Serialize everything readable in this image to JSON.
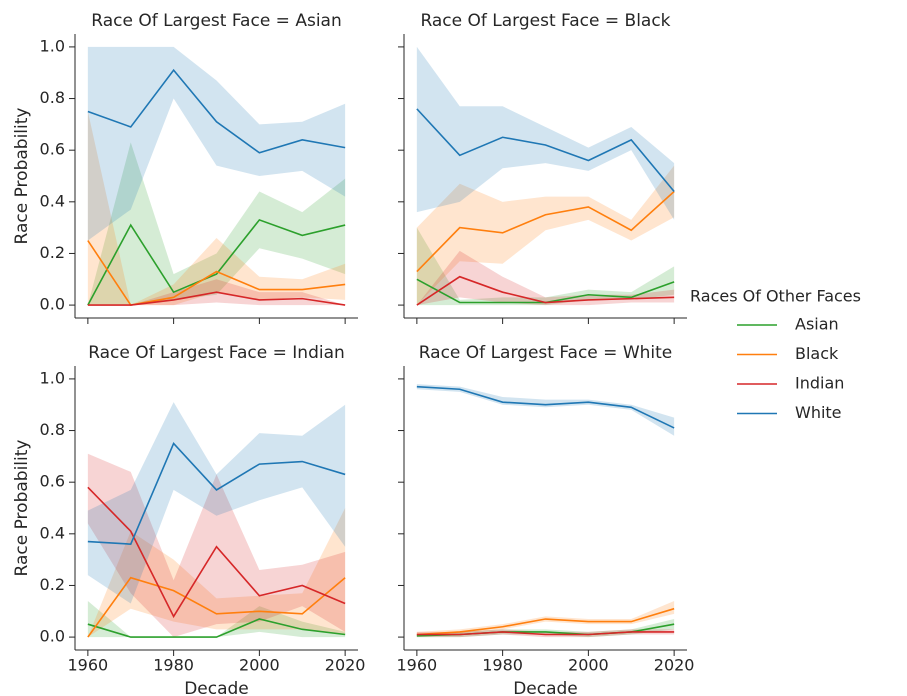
{
  "chart_data": [
    {
      "type": "line",
      "title": "Race Of Largest Face = Asian",
      "ylabel": "Race Probability",
      "legend_title": "Races Of Other Faces",
      "x": [
        1960,
        1970,
        1980,
        1990,
        2000,
        2010,
        2020
      ],
      "xlim": [
        1957,
        2023
      ],
      "xticks": [
        1960,
        1980,
        2000,
        2020
      ],
      "ylim": [
        -0.05,
        1.05
      ],
      "yticks": [
        {
          "value": 0,
          "label": "0.0"
        },
        0.2,
        0.4,
        0.6,
        0.8,
        {
          "value": 1,
          "label": "1.0"
        }
      ],
      "series": [
        {
          "name": "Asian",
          "color": "#2ca02c",
          "values": [
            0,
            0.31,
            0.05,
            0.12,
            0.33,
            0.27,
            0.31
          ],
          "lower": [
            0,
            0,
            0.02,
            0.04,
            0.22,
            0.18,
            0.12
          ],
          "upper": [
            0,
            0.63,
            0.12,
            0.2,
            0.44,
            0.36,
            0.49
          ]
        },
        {
          "name": "Black",
          "color": "#ff7f0e",
          "values": [
            0.25,
            0,
            0.03,
            0.13,
            0.06,
            0.06,
            0.08
          ],
          "lower": [
            0,
            0,
            0,
            0.05,
            0.02,
            0.03,
            0.02
          ],
          "upper": [
            0.75,
            0,
            0.08,
            0.26,
            0.11,
            0.1,
            0.16
          ]
        },
        {
          "name": "Indian",
          "color": "#d62728",
          "values": [
            0,
            0,
            0.02,
            0.05,
            0.02,
            0.025,
            0
          ],
          "lower": [
            0,
            0,
            0,
            0.01,
            0,
            0,
            0
          ],
          "upper": [
            0,
            0,
            0.05,
            0.1,
            0.05,
            0.05,
            0
          ]
        },
        {
          "name": "White",
          "color": "#1f77b4",
          "values": [
            0.75,
            0.69,
            0.91,
            0.71,
            0.59,
            0.64,
            0.61
          ],
          "lower": [
            0.25,
            0.37,
            0.8,
            0.54,
            0.5,
            0.52,
            0.42
          ],
          "upper": [
            1,
            1,
            1,
            0.87,
            0.7,
            0.71,
            0.78
          ]
        }
      ]
    },
    {
      "type": "line",
      "title": "Race Of Largest Face = Black",
      "x": [
        1960,
        1970,
        1980,
        1990,
        2000,
        2010,
        2020
      ],
      "xlim": [
        1957,
        2023
      ],
      "xticks": [
        1960,
        1980,
        2000,
        2020
      ],
      "ylim": [
        -0.05,
        1.05
      ],
      "yticks": [
        {
          "value": 0,
          "label": "0.0"
        },
        0.2,
        0.4,
        0.6,
        0.8,
        {
          "value": 1,
          "label": "1.0"
        }
      ],
      "series": [
        {
          "name": "Asian",
          "color": "#2ca02c",
          "values": [
            0.1,
            0.01,
            0.01,
            0.01,
            0.04,
            0.03,
            0.09
          ],
          "lower": [
            0,
            0,
            0,
            0,
            0.02,
            0.02,
            0.04
          ],
          "upper": [
            0.3,
            0.02,
            0.03,
            0.03,
            0.06,
            0.05,
            0.15
          ]
        },
        {
          "name": "Black",
          "color": "#ff7f0e",
          "values": [
            0.13,
            0.3,
            0.28,
            0.35,
            0.38,
            0.29,
            0.44
          ],
          "lower": [
            0,
            0.17,
            0.16,
            0.29,
            0.33,
            0.25,
            0.34
          ],
          "upper": [
            0.3,
            0.47,
            0.4,
            0.42,
            0.42,
            0.33,
            0.54
          ]
        },
        {
          "name": "Indian",
          "color": "#d62728",
          "values": [
            0,
            0.11,
            0.05,
            0.01,
            0.02,
            0.025,
            0.03
          ],
          "lower": [
            0,
            0.03,
            0.01,
            0,
            0,
            0.01,
            0.01
          ],
          "upper": [
            0,
            0.21,
            0.11,
            0.03,
            0.04,
            0.04,
            0.06
          ]
        },
        {
          "name": "White",
          "color": "#1f77b4",
          "values": [
            0.76,
            0.58,
            0.65,
            0.62,
            0.56,
            0.64,
            0.44
          ],
          "lower": [
            0.36,
            0.4,
            0.53,
            0.55,
            0.52,
            0.6,
            0.33
          ],
          "upper": [
            1,
            0.77,
            0.77,
            0.69,
            0.61,
            0.69,
            0.55
          ]
        }
      ]
    },
    {
      "type": "line",
      "title": "Race Of Largest Face = Indian",
      "ylabel": "Race Probability",
      "xlabel": "Decade",
      "x": [
        1960,
        1970,
        1980,
        1990,
        2000,
        2010,
        2020
      ],
      "xlim": [
        1957,
        2023
      ],
      "xticks": [
        1960,
        1980,
        2000,
        2020
      ],
      "ylim": [
        -0.05,
        1.05
      ],
      "yticks": [
        {
          "value": 0,
          "label": "0.0"
        },
        0.2,
        0.4,
        0.6,
        0.8,
        {
          "value": 1,
          "label": "1.0"
        }
      ],
      "series": [
        {
          "name": "Asian",
          "color": "#2ca02c",
          "values": [
            0.05,
            0,
            0,
            0,
            0.07,
            0.03,
            0.01
          ],
          "lower": [
            0,
            0,
            0,
            0,
            0.02,
            0,
            0
          ],
          "upper": [
            0.14,
            0,
            0,
            0,
            0.12,
            0.06,
            0.02
          ]
        },
        {
          "name": "Black",
          "color": "#ff7f0e",
          "values": [
            0,
            0.23,
            0.18,
            0.09,
            0.1,
            0.09,
            0.23
          ],
          "lower": [
            0,
            0.11,
            0.06,
            0.03,
            0.03,
            0.03,
            0.01
          ],
          "upper": [
            0,
            0.41,
            0.3,
            0.15,
            0.16,
            0.17,
            0.5
          ]
        },
        {
          "name": "Indian",
          "color": "#d62728",
          "values": [
            0.58,
            0.41,
            0.08,
            0.35,
            0.16,
            0.2,
            0.13
          ],
          "lower": [
            0.44,
            0.17,
            0,
            0.05,
            0.06,
            0.12,
            0.02
          ],
          "upper": [
            0.71,
            0.64,
            0.22,
            0.63,
            0.26,
            0.28,
            0.33
          ]
        },
        {
          "name": "White",
          "color": "#1f77b4",
          "values": [
            0.37,
            0.36,
            0.75,
            0.57,
            0.67,
            0.68,
            0.63
          ],
          "lower": [
            0.24,
            0.13,
            0.57,
            0.47,
            0.53,
            0.58,
            0.35
          ],
          "upper": [
            0.49,
            0.57,
            0.91,
            0.63,
            0.79,
            0.78,
            0.9
          ]
        }
      ]
    },
    {
      "type": "line",
      "title": "Race Of Largest Face = White",
      "xlabel": "Decade",
      "x": [
        1960,
        1970,
        1980,
        1990,
        2000,
        2010,
        2020
      ],
      "xlim": [
        1957,
        2023
      ],
      "xticks": [
        1960,
        1980,
        2000,
        2020
      ],
      "ylim": [
        -0.05,
        1.05
      ],
      "yticks": [
        {
          "value": 0,
          "label": "0.0"
        },
        0.2,
        0.4,
        0.6,
        0.8,
        {
          "value": 1,
          "label": "1.0"
        }
      ],
      "series": [
        {
          "name": "Asian",
          "color": "#2ca02c",
          "values": [
            0.005,
            0.01,
            0.02,
            0.02,
            0.01,
            0.02,
            0.05
          ],
          "lower": [
            0,
            0,
            0.01,
            0.01,
            0,
            0.01,
            0.03
          ],
          "upper": [
            0.01,
            0.02,
            0.03,
            0.03,
            0.02,
            0.03,
            0.07
          ]
        },
        {
          "name": "Black",
          "color": "#ff7f0e",
          "values": [
            0.01,
            0.02,
            0.04,
            0.07,
            0.06,
            0.06,
            0.11
          ],
          "lower": [
            0.005,
            0.015,
            0.03,
            0.06,
            0.05,
            0.05,
            0.09
          ],
          "upper": [
            0.02,
            0.03,
            0.05,
            0.08,
            0.07,
            0.07,
            0.14
          ]
        },
        {
          "name": "Indian",
          "color": "#d62728",
          "values": [
            0.01,
            0.01,
            0.02,
            0.01,
            0.01,
            0.02,
            0.02
          ],
          "lower": [
            0,
            0,
            0.01,
            0,
            0,
            0.01,
            0.01
          ],
          "upper": [
            0.02,
            0.02,
            0.03,
            0.02,
            0.02,
            0.03,
            0.03
          ]
        },
        {
          "name": "White",
          "color": "#1f77b4",
          "values": [
            0.97,
            0.96,
            0.91,
            0.9,
            0.91,
            0.89,
            0.81
          ],
          "lower": [
            0.96,
            0.95,
            0.9,
            0.89,
            0.9,
            0.88,
            0.78
          ],
          "upper": [
            0.98,
            0.97,
            0.93,
            0.92,
            0.92,
            0.9,
            0.85
          ]
        }
      ]
    }
  ]
}
